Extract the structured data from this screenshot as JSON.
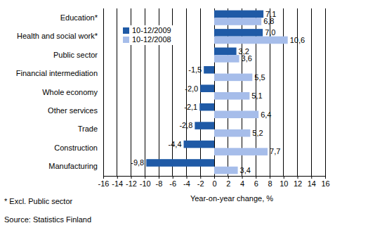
{
  "chart_data": {
    "type": "bar",
    "orientation": "horizontal",
    "categories": [
      "Education*",
      "Health and social work*",
      "Public sector",
      "Financial intermediation",
      "Whole economy",
      "Other services",
      "Trade",
      "Construction",
      "Manufacturing"
    ],
    "series": [
      {
        "name": "10-12/2009",
        "color": "#1f5aa6",
        "values": [
          7.1,
          7.0,
          3.2,
          -1.5,
          -2.0,
          -2.1,
          -2.8,
          -4.4,
          -9.8
        ],
        "value_labels": [
          "7,1",
          "7,0",
          "3,2",
          "-1,5",
          "-2,0",
          "-2,1",
          "-2,8",
          "-4,4",
          "-9,8"
        ]
      },
      {
        "name": "10-12/2008",
        "color": "#a6bdea",
        "values": [
          6.8,
          10.6,
          3.6,
          5.5,
          5.1,
          6.4,
          5.2,
          7.7,
          3.4
        ],
        "value_labels": [
          "6,8",
          "10,6",
          "3,6",
          "5,5",
          "5,1",
          "6,4",
          "5,2",
          "7,7",
          "3,4"
        ]
      }
    ],
    "x_label": "Year-on-year change, %",
    "xlim": [
      -16,
      16
    ],
    "xticks": [
      -16,
      -14,
      -12,
      -10,
      -8,
      -6,
      -4,
      -2,
      0,
      2,
      4,
      6,
      8,
      10,
      12,
      14,
      16
    ],
    "grid": true,
    "legend": "upper left",
    "data_labels": true,
    "annotations": [
      "* Excl. Public sector",
      "Source: Statistics Finland"
    ]
  }
}
